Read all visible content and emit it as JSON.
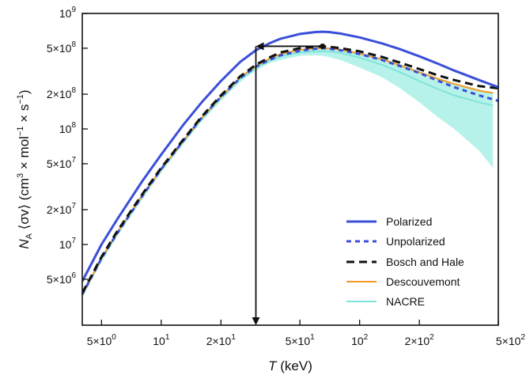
{
  "chart_data": {
    "type": "line",
    "xscale": "log",
    "yscale": "log",
    "xlim": [
      4,
      500
    ],
    "ylim": [
      2000000,
      1000000000
    ],
    "xlabel": {
      "sym": "T",
      "unit": " (keV)"
    },
    "ylabel": {
      "sym": "N",
      "sub": "A",
      "bracket": " ⟨σv⟩ (cm",
      "e3": "3",
      "mid": " × mol",
      "e4": "−1",
      "mid2": " × s",
      "e5": "−1",
      "end": ")"
    },
    "xticks": [
      {
        "value": 5,
        "mant": "5×10",
        "exp": "0"
      },
      {
        "value": 10,
        "mant": "10",
        "exp": "1"
      },
      {
        "value": 20,
        "mant": "2×10",
        "exp": "1"
      },
      {
        "value": 50,
        "mant": "5×10",
        "exp": "1"
      },
      {
        "value": 100,
        "mant": "10",
        "exp": "2"
      },
      {
        "value": 200,
        "mant": "2×10",
        "exp": "2"
      },
      {
        "value": 500,
        "mant": "5×10",
        "exp": "2"
      }
    ],
    "yticks": [
      {
        "value": 5000000,
        "mant": "5×10",
        "exp": "6"
      },
      {
        "value": 10000000,
        "mant": "10",
        "exp": "7"
      },
      {
        "value": 20000000,
        "mant": "2×10",
        "exp": "7"
      },
      {
        "value": 50000000,
        "mant": "5×10",
        "exp": "7"
      },
      {
        "value": 100000000,
        "mant": "10",
        "exp": "8"
      },
      {
        "value": 200000000,
        "mant": "2×10",
        "exp": "8"
      },
      {
        "value": 500000000,
        "mant": "5×10",
        "exp": "8"
      },
      {
        "value": 1000000000,
        "mant": "10",
        "exp": "9"
      }
    ],
    "series": [
      {
        "name": "Polarized",
        "color": "#3b4fd8",
        "style": "solid",
        "x": [
          4,
          5,
          6,
          8,
          10,
          13,
          16,
          20,
          25,
          30,
          35,
          40,
          50,
          60,
          65,
          70,
          80,
          100,
          130,
          160,
          200,
          250,
          300,
          400,
          500
        ],
        "y": [
          4800000.0,
          10000000.0,
          16500000.0,
          35000000.0,
          60000000.0,
          110000000.0,
          170000000.0,
          260000000.0,
          380000000.0,
          480000000.0,
          550000000.0,
          605000000.0,
          665000000.0,
          690000000.0,
          695000000.0,
          690000000.0,
          670000000.0,
          620000000.0,
          550000000.0,
          490000000.0,
          425000000.0,
          365000000.0,
          320000000.0,
          265000000.0,
          230000000.0
        ]
      },
      {
        "name": "Unpolarized",
        "color": "#3b4fd8",
        "style": "dotted",
        "x": [
          4,
          5,
          6,
          8,
          10,
          13,
          16,
          20,
          25,
          30,
          35,
          40,
          50,
          60,
          65,
          70,
          80,
          100,
          130,
          160,
          200,
          250,
          300,
          400,
          500
        ],
        "y": [
          3700000.0,
          7600000.0,
          12500000.0,
          26000000.0,
          45000000.0,
          80000000.0,
          125000000.0,
          190000000.0,
          275000000.0,
          345000000.0,
          395000000.0,
          435000000.0,
          475000000.0,
          495000000.0,
          500000000.0,
          495000000.0,
          480000000.0,
          445000000.0,
          395000000.0,
          350000000.0,
          305000000.0,
          260000000.0,
          230000000.0,
          195000000.0,
          175000000.0
        ]
      },
      {
        "name": "Bosch and Hale",
        "color": "#111111",
        "style": "dashed",
        "x": [
          4,
          5,
          6,
          8,
          10,
          13,
          16,
          20,
          25,
          30,
          35,
          40,
          50,
          60,
          65,
          70,
          80,
          100,
          130,
          160,
          200,
          250,
          300,
          400,
          500
        ],
        "y": [
          3800000.0,
          7800000.0,
          13000000.0,
          27000000.0,
          46000000.0,
          82000000.0,
          128000000.0,
          195000000.0,
          285000000.0,
          360000000.0,
          415000000.0,
          460000000.0,
          500000000.0,
          515000000.0,
          520000000.0,
          515000000.0,
          500000000.0,
          470000000.0,
          420000000.0,
          375000000.0,
          330000000.0,
          290000000.0,
          265000000.0,
          235000000.0,
          225000000.0
        ]
      },
      {
        "name": "Descouvemont",
        "color": "#f59a23",
        "style": "solid",
        "x": [
          4,
          5,
          6,
          8,
          10,
          13,
          16,
          20,
          25,
          30,
          35,
          40,
          50,
          60,
          65,
          70,
          80,
          100,
          130,
          160,
          200,
          250,
          300,
          400,
          470
        ],
        "y": [
          3700000.0,
          7600000.0,
          12700000.0,
          26500000.0,
          45000000.0,
          80000000.0,
          125000000.0,
          190000000.0,
          280000000.0,
          350000000.0,
          405000000.0,
          445000000.0,
          485000000.0,
          497000000.0,
          500000000.0,
          497000000.0,
          485000000.0,
          450000000.0,
          400000000.0,
          355000000.0,
          310000000.0,
          270000000.0,
          245000000.0,
          215000000.0,
          205000000.0
        ]
      },
      {
        "name": "NACRE",
        "color": "#7fe3d8",
        "style": "solid",
        "x": [
          4,
          5,
          6,
          8,
          10,
          13,
          16,
          20,
          25,
          30,
          35,
          40,
          50,
          60,
          65,
          70,
          80,
          100,
          130,
          160,
          200,
          250,
          300,
          400,
          470
        ],
        "y": [
          3600000.0,
          7400000.0,
          12300000.0,
          25500000.0,
          44000000.0,
          78000000.0,
          122000000.0,
          185000000.0,
          270000000.0,
          340000000.0,
          390000000.0,
          425000000.0,
          460000000.0,
          470000000.0,
          472000000.0,
          468000000.0,
          455000000.0,
          415000000.0,
          360000000.0,
          310000000.0,
          260000000.0,
          220000000.0,
          195000000.0,
          170000000.0,
          160000000.0
        ]
      }
    ],
    "band": {
      "name": "NACRE uncertainty",
      "color": "#b6f2ea",
      "x": [
        4,
        5,
        6,
        8,
        10,
        13,
        16,
        20,
        25,
        30,
        35,
        40,
        50,
        60,
        65,
        70,
        80,
        100,
        130,
        160,
        200,
        250,
        300,
        400,
        470
      ],
      "upper": [
        3700000.0,
        7700000.0,
        12800000.0,
        26500000.0,
        46000000.0,
        81000000.0,
        127000000.0,
        193000000.0,
        285000000.0,
        355000000.0,
        410000000.0,
        450000000.0,
        490000000.0,
        505000000.0,
        510000000.0,
        505000000.0,
        495000000.0,
        460000000.0,
        410000000.0,
        365000000.0,
        315000000.0,
        275000000.0,
        250000000.0,
        220000000.0,
        205000000.0
      ],
      "lower": [
        3500000.0,
        7100000.0,
        11800000.0,
        24500000.0,
        42000000.0,
        75000000.0,
        116000000.0,
        175000000.0,
        255000000.0,
        320000000.0,
        370000000.0,
        395000000.0,
        430000000.0,
        435000000.0,
        430000000.0,
        420000000.0,
        395000000.0,
        340000000.0,
        280000000.0,
        225000000.0,
        170000000.0,
        125000000.0,
        100000000.0,
        65000000.0,
        46000000.0
      ]
    },
    "annotations": {
      "peak_point": {
        "x": 65,
        "y": 520000000.0
      },
      "horizontal_arrow": {
        "from_x": 65,
        "to_x": 30,
        "y": 520000000.0
      },
      "vertical_arrow": {
        "x": 30,
        "from_y": 520000000.0,
        "to_y": 2000000
      }
    },
    "legend": {
      "placement": "bottom-right"
    }
  }
}
